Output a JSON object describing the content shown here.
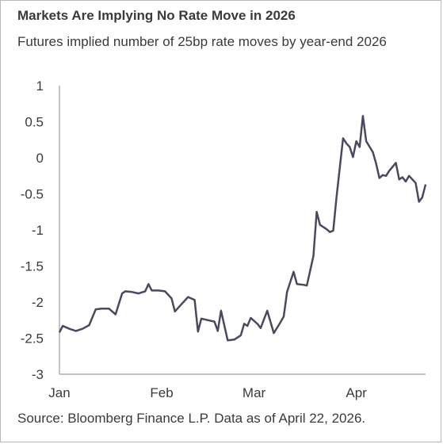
{
  "chart_data": {
    "type": "line",
    "title": "Markets Are Implying No Rate Move in 2026",
    "subtitle": "Futures implied number of 25bp rate moves by year-end 2026",
    "source": "Source: Bloomberg Finance L.P. Data as of April 22, 2026.",
    "xlabel": "",
    "ylabel": "",
    "ylim": [
      -3,
      1
    ],
    "yticks": [
      1,
      0.5,
      0,
      -0.5,
      -1,
      -1.5,
      -2,
      -2.5,
      -3
    ],
    "ytick_labels": [
      "1",
      "0.5",
      "0",
      "-0.5",
      "-1",
      "-1.5",
      "-2",
      "-2.5",
      "-3"
    ],
    "xlim": [
      "2026-01-01",
      "2026-04-22"
    ],
    "xticks": [
      {
        "label": "Jan",
        "date": "2026-01-01"
      },
      {
        "label": "Feb",
        "date": "2026-02-01"
      },
      {
        "label": "Mar",
        "date": "2026-03-01"
      },
      {
        "label": "Apr",
        "date": "2026-04-01"
      }
    ],
    "grid": false,
    "line_color": "#4a4a5e",
    "series": [
      {
        "points": [
          [
            "2026-01-01",
            -2.42
          ],
          [
            "2026-01-02",
            -2.33
          ],
          [
            "2026-01-04",
            -2.37
          ],
          [
            "2026-01-06",
            -2.4
          ],
          [
            "2026-01-08",
            -2.37
          ],
          [
            "2026-01-10",
            -2.32
          ],
          [
            "2026-01-12",
            -2.1
          ],
          [
            "2026-01-14",
            -2.09
          ],
          [
            "2026-01-16",
            -2.09
          ],
          [
            "2026-01-18",
            -2.17
          ],
          [
            "2026-01-20",
            -1.88
          ],
          [
            "2026-01-21",
            -1.85
          ],
          [
            "2026-01-23",
            -1.86
          ],
          [
            "2026-01-25",
            -1.88
          ],
          [
            "2026-01-27",
            -1.85
          ],
          [
            "2026-01-28",
            -1.75
          ],
          [
            "2026-01-29",
            -1.84
          ],
          [
            "2026-01-31",
            -1.84
          ],
          [
            "2026-02-02",
            -1.85
          ],
          [
            "2026-02-04",
            -1.95
          ],
          [
            "2026-02-05",
            -2.13
          ],
          [
            "2026-02-07",
            -2.03
          ],
          [
            "2026-02-09",
            -1.93
          ],
          [
            "2026-02-11",
            -1.97
          ],
          [
            "2026-02-12",
            -2.41
          ],
          [
            "2026-02-13",
            -2.23
          ],
          [
            "2026-02-15",
            -2.25
          ],
          [
            "2026-02-17",
            -2.27
          ],
          [
            "2026-02-18",
            -2.4
          ],
          [
            "2026-02-19",
            -2.12
          ],
          [
            "2026-02-21",
            -2.53
          ],
          [
            "2026-02-23",
            -2.52
          ],
          [
            "2026-02-25",
            -2.46
          ],
          [
            "2026-02-26",
            -2.3
          ],
          [
            "2026-02-27",
            -2.33
          ],
          [
            "2026-02-28",
            -2.22
          ],
          [
            "2026-03-02",
            -2.3
          ],
          [
            "2026-03-03",
            -2.36
          ],
          [
            "2026-03-05",
            -2.12
          ],
          [
            "2026-03-07",
            -2.43
          ],
          [
            "2026-03-09",
            -2.28
          ],
          [
            "2026-03-10",
            -2.2
          ],
          [
            "2026-03-11",
            -1.86
          ],
          [
            "2026-03-13",
            -1.58
          ],
          [
            "2026-03-14",
            -1.75
          ],
          [
            "2026-03-16",
            -1.76
          ],
          [
            "2026-03-17",
            -1.77
          ],
          [
            "2026-03-19",
            -1.36
          ],
          [
            "2026-03-20",
            -0.75
          ],
          [
            "2026-03-21",
            -0.93
          ],
          [
            "2026-03-23",
            -0.99
          ],
          [
            "2026-03-24",
            -1.03
          ],
          [
            "2026-03-25",
            -1.01
          ],
          [
            "2026-03-26",
            -0.55
          ],
          [
            "2026-03-28",
            0.27
          ],
          [
            "2026-03-29",
            0.2
          ],
          [
            "2026-03-30",
            0.15
          ],
          [
            "2026-03-31",
            0.01
          ],
          [
            "2026-04-01",
            0.23
          ],
          [
            "2026-04-02",
            0.15
          ],
          [
            "2026-04-03",
            0.58
          ],
          [
            "2026-04-04",
            0.23
          ],
          [
            "2026-04-06",
            0.08
          ],
          [
            "2026-04-07",
            -0.08
          ],
          [
            "2026-04-08",
            -0.28
          ],
          [
            "2026-04-09",
            -0.24
          ],
          [
            "2026-04-10",
            -0.25
          ],
          [
            "2026-04-11",
            -0.18
          ],
          [
            "2026-04-13",
            -0.07
          ],
          [
            "2026-04-14",
            -0.3
          ],
          [
            "2026-04-15",
            -0.27
          ],
          [
            "2026-04-16",
            -0.33
          ],
          [
            "2026-04-17",
            -0.25
          ],
          [
            "2026-04-18",
            -0.3
          ],
          [
            "2026-04-19",
            -0.35
          ],
          [
            "2026-04-20",
            -0.61
          ],
          [
            "2026-04-21",
            -0.55
          ],
          [
            "2026-04-22",
            -0.37
          ]
        ]
      }
    ]
  }
}
